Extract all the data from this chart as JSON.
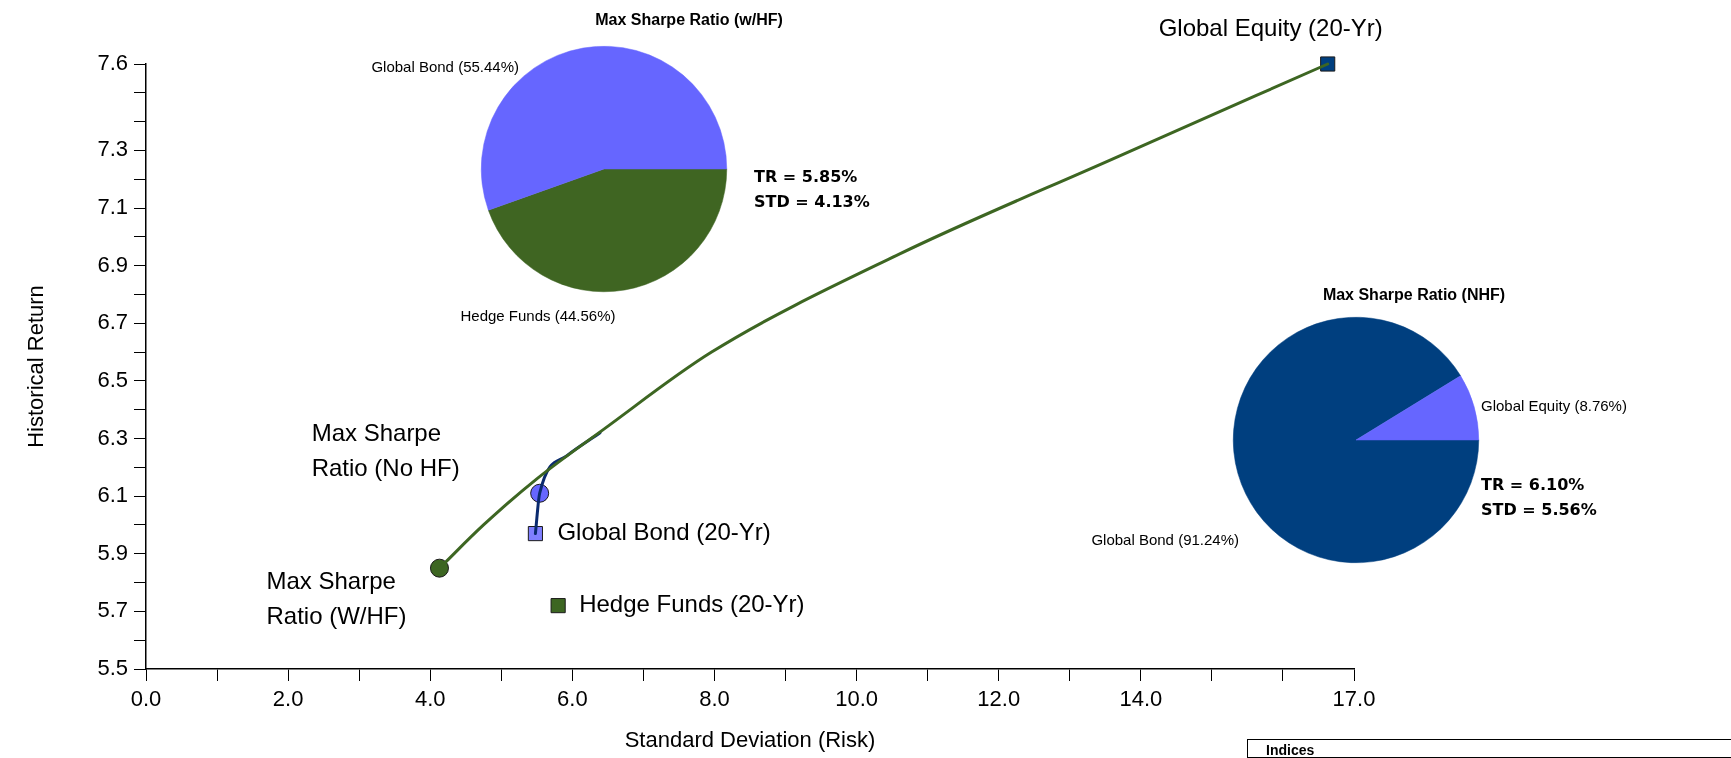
{
  "chart_data": [
    {
      "type": "line",
      "xlabel": "Standard Deviation (Risk)",
      "ylabel": "Historical Return",
      "xlim": [
        0,
        17
      ],
      "ylim": [
        5.5,
        7.6
      ],
      "xticks": [
        {
          "value": 0,
          "label": "0.0"
        },
        {
          "value": 1,
          "label": null
        },
        {
          "value": 2,
          "label": "2.0"
        },
        {
          "value": 3,
          "label": null
        },
        {
          "value": 4,
          "label": "4.0"
        },
        {
          "value": 5,
          "label": null
        },
        {
          "value": 6,
          "label": "6.0"
        },
        {
          "value": 7,
          "label": null
        },
        {
          "value": 8,
          "label": "8.0"
        },
        {
          "value": 9,
          "label": null
        },
        {
          "value": 10,
          "label": "10.0"
        },
        {
          "value": 11,
          "label": null
        },
        {
          "value": 12,
          "label": "12.0"
        },
        {
          "value": 13,
          "label": null
        },
        {
          "value": 14,
          "label": "14.0"
        },
        {
          "value": 15,
          "label": null
        },
        {
          "value": 16,
          "label": null
        },
        {
          "value": 17,
          "label": "17.0"
        }
      ],
      "yticks": [
        5.5,
        {
          "value": 5.6,
          "label": null
        },
        5.7,
        {
          "value": 5.8,
          "label": null
        },
        5.9,
        {
          "value": 6.0,
          "label": null
        },
        6.1,
        {
          "value": 6.2,
          "label": null
        },
        6.3,
        {
          "value": 6.4,
          "label": null
        },
        6.5,
        {
          "value": 6.6,
          "label": null
        },
        6.7,
        {
          "value": 6.8,
          "label": null
        },
        6.9,
        {
          "value": 7.0,
          "label": null
        },
        7.1,
        {
          "value": 7.2,
          "label": null
        },
        7.3,
        {
          "value": 7.4,
          "label": null
        },
        {
          "value": 7.5,
          "label": null
        },
        7.6
      ],
      "grid": false,
      "legend": false,
      "annotations": [
        "Indices"
      ],
      "series": [
        {
          "type": "line",
          "color": "#3d6622",
          "marker": "none",
          "x": [
            4.13,
            4.75,
            5.5,
            6.43,
            7.96,
            10.6,
            13.6,
            16.63
          ],
          "values": [
            5.85,
            6.0,
            6.16,
            6.33,
            6.6,
            6.94,
            7.27,
            7.6
          ]
        },
        {
          "type": "line",
          "color": "#0a2a6e",
          "marker": "none",
          "x": [
            5.48,
            5.54,
            5.92,
            6.39
          ],
          "values": [
            5.97,
            6.11,
            6.24,
            6.32
          ]
        },
        {
          "type": "scatter",
          "name": "Global Equity (20-Yr)",
          "color": "#003f7f",
          "marker": "square",
          "x": [
            16.63
          ],
          "values": [
            7.6
          ]
        },
        {
          "type": "scatter",
          "name": "Global Bond (20-Yr)",
          "color": "#7f7fff",
          "marker": "square",
          "x": [
            5.48
          ],
          "values": [
            5.97
          ]
        },
        {
          "type": "scatter",
          "name": "Hedge Funds (20-Yr)",
          "color": "#3d6622",
          "marker": "square",
          "x": [
            5.8
          ],
          "values": [
            5.72
          ]
        },
        {
          "type": "scatter",
          "name": "Max Sharpe Ratio (No HF)",
          "color": "#6666ff",
          "marker": "circle",
          "x": [
            5.54
          ],
          "values": [
            6.11
          ]
        },
        {
          "type": "scatter",
          "name": "Max Sharpe Ratio (W/HF)",
          "color": "#3d6622",
          "marker": "circle",
          "x": [
            4.13
          ],
          "values": [
            5.85
          ]
        }
      ]
    },
    {
      "type": "pie",
      "title": "Max Sharpe Ratio (w/HF)",
      "categories": [
        "Hedge Funds",
        "Global Bond"
      ],
      "values": [
        44.56,
        55.44
      ],
      "colors": [
        "#3f6522",
        "#6666ff"
      ],
      "value_labels": [
        "(44.56%)",
        "(55.44%)"
      ],
      "annotations": [
        "TR = 5.85%",
        "STD = 4.13%"
      ]
    },
    {
      "type": "pie",
      "title": "Max Sharpe Ratio (NHF)",
      "categories": [
        "Global Bond",
        "Global Equity"
      ],
      "values": [
        91.24,
        8.76
      ],
      "colors": [
        "#003f7f",
        "#6666ff"
      ],
      "value_labels": [
        "(91.24%)",
        "(8.76%)"
      ],
      "annotations": [
        "TR = 6.10%",
        "STD = 5.56%"
      ]
    }
  ]
}
